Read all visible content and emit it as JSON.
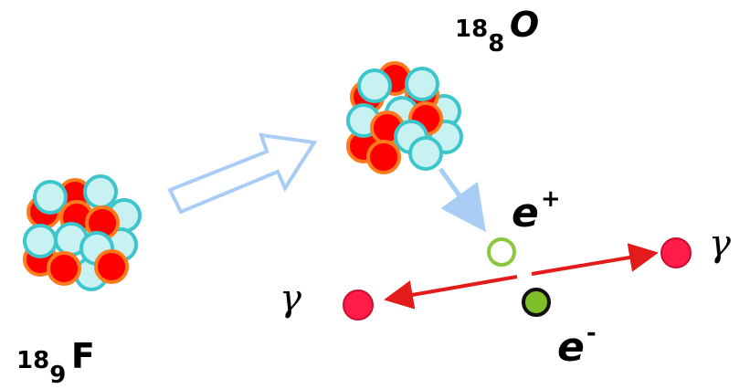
{
  "colors": {
    "neutron_fill": "#c8f2f2",
    "neutron_stroke": "#3cc6cc",
    "proton_fill": "#ff0000",
    "proton_stroke": "#ff7a1a",
    "process_arrow": "#a9cdf5",
    "photon_arrow": "#e31b1b",
    "positron_stroke": "#8dc63f",
    "electron_fill": "#7fbf27",
    "photon_fill": "#ff1c48"
  },
  "labels": {
    "fluorine": {
      "mass": "18",
      "z": "9",
      "symbol": "F"
    },
    "oxygen": {
      "mass": "18",
      "z": "8",
      "symbol": "O"
    },
    "positron": {
      "base": "e",
      "charge": "+"
    },
    "electron": {
      "base": "e",
      "charge": "-"
    },
    "gamma_left": "γ",
    "gamma_right": "γ"
  }
}
